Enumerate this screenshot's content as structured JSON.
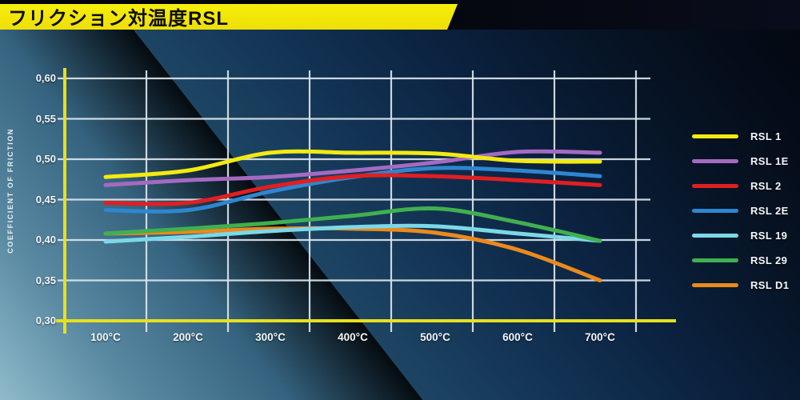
{
  "header": {
    "title": "フリクション対温度RSL"
  },
  "colors": {
    "title_bar": "#f3ea0a",
    "title_text": "#0d0d0d",
    "axis_yellow": "#e7e01d",
    "gridline_white": "#dbe5ec",
    "label_white": "#f2f6f9"
  },
  "chart_data": {
    "type": "line",
    "title": "フリクション対温度RSL",
    "xlabel": "",
    "ylabel": "COEFFICIENT OF FRICTION",
    "x_unit": "°C",
    "categories": [
      100,
      200,
      300,
      400,
      500,
      600,
      700
    ],
    "x_tick_labels": [
      "100°C",
      "200°C",
      "300°C",
      "400°C",
      "500°C",
      "600°C",
      "700°C"
    ],
    "y_ticks": [
      0.6,
      0.55,
      0.5,
      0.45,
      0.4,
      0.35,
      0.3
    ],
    "y_tick_labels": [
      "0,60",
      "0,55",
      "0,50",
      "0,45",
      "0,40",
      "0,35",
      "0,30"
    ],
    "ylim": [
      0.3,
      0.6
    ],
    "grid": true,
    "legend_position": "right",
    "series": [
      {
        "name": "RSL 1",
        "color": "#f2ea12",
        "values": [
          0.478,
          0.486,
          0.508,
          0.508,
          0.507,
          0.498,
          0.497
        ]
      },
      {
        "name": "RSL 1E",
        "color": "#a46ac1",
        "values": [
          0.468,
          0.474,
          0.478,
          0.486,
          0.496,
          0.509,
          0.508
        ]
      },
      {
        "name": "RSL 2",
        "color": "#e01f22",
        "values": [
          0.446,
          0.446,
          0.466,
          0.479,
          0.479,
          0.474,
          0.468
        ]
      },
      {
        "name": "RSL 2E",
        "color": "#2e86d0",
        "values": [
          0.437,
          0.437,
          0.46,
          0.478,
          0.489,
          0.486,
          0.479
        ]
      },
      {
        "name": "RSL 19",
        "color": "#7cd8e8",
        "values": [
          0.398,
          0.404,
          0.411,
          0.416,
          0.417,
          0.408,
          0.399
        ]
      },
      {
        "name": "RSL 29",
        "color": "#3fb050",
        "values": [
          0.408,
          0.414,
          0.421,
          0.43,
          0.439,
          0.422,
          0.399
        ]
      },
      {
        "name": "RSL D1",
        "color": "#ea8a1d",
        "values": [
          0.408,
          0.41,
          0.414,
          0.414,
          0.409,
          0.388,
          0.35
        ]
      }
    ]
  }
}
